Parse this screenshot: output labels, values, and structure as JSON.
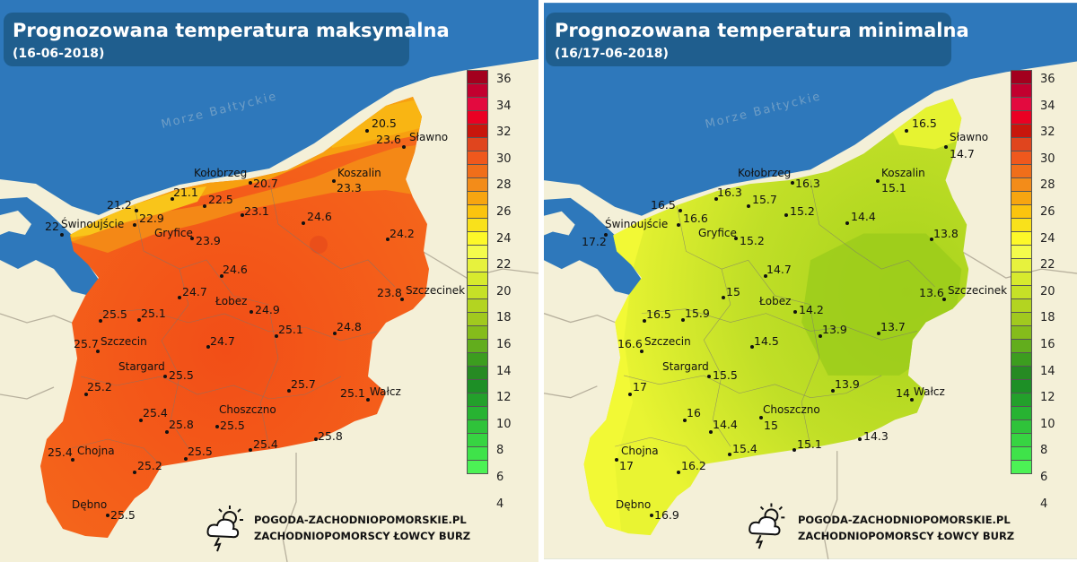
{
  "colors": {
    "sea": "#2e78bb",
    "land_outside": "#f4f0d8",
    "max_base": "#f35a19",
    "min_base": "#cfe52a"
  },
  "sea_label": "Morze Bałtyckie",
  "watermark": {
    "line1": "POGODA-ZACHODNIOPOMORSKIE.PL",
    "line2": "ZACHODNIOPOMORSCY ŁOWCY BURZ",
    "icon": "storm-cloud-sun-icon"
  },
  "legend": {
    "ticks": [
      "36",
      "34",
      "32",
      "30",
      "28",
      "26",
      "24",
      "22",
      "20",
      "18",
      "16",
      "14",
      "12",
      "10",
      "8",
      "6",
      "4"
    ],
    "colors": [
      "#a3001e",
      "#c2002f",
      "#e30a3f",
      "#ea0023",
      "#c8160c",
      "#e0451e",
      "#ef581d",
      "#f06e1a",
      "#f38c19",
      "#f7a510",
      "#fbc40e",
      "#f9e11b",
      "#fdf829",
      "#f4fb4c",
      "#e7f23d",
      "#d7ea2e",
      "#c6e127",
      "#b3d421",
      "#a1c91f",
      "#85bc1b",
      "#62ad1d",
      "#3c9d1f",
      "#268a23",
      "#1d8f26",
      "#23a02b",
      "#27b332",
      "#2fc33a",
      "#37d442",
      "#3fe34a",
      "#4cf255"
    ]
  },
  "cities": [
    {
      "name": "Sławno"
    },
    {
      "name": "Kołobrzeg"
    },
    {
      "name": "Koszalin"
    },
    {
      "name": "Świnoujście"
    },
    {
      "name": "Gryfice"
    },
    {
      "name": "Łobez"
    },
    {
      "name": "Szczecinek"
    },
    {
      "name": "Szczecin"
    },
    {
      "name": "Stargard"
    },
    {
      "name": "Wałcz"
    },
    {
      "name": "Choszczno"
    },
    {
      "name": "Chojna"
    },
    {
      "name": "Dębno"
    }
  ],
  "max_map": {
    "title": "Prognozowana temperatura maksymalna",
    "date": "(16-06-2018)",
    "values": [
      "20.5",
      "23.6",
      "20.7",
      "23.3",
      "21.2",
      "21.1",
      "22.5",
      "23.1",
      "24.6",
      "22",
      "22.9",
      "23.9",
      "24.2",
      "24.6",
      "24.7",
      "23.8",
      "25.5",
      "25.1",
      "24.9",
      "25.1",
      "24.8",
      "25.7",
      "24.7",
      "25.5",
      "25.2",
      "25.7",
      "25.1",
      "25.4",
      "25.8",
      "25.5",
      "25.4",
      "25.5",
      "25.8",
      "25.4",
      "25.2",
      "25.5"
    ]
  },
  "min_map": {
    "title": "Prognozowana temperatura minimalna",
    "date": "(16/17-06-2018)",
    "values": [
      "16.5",
      "14.7",
      "16.3",
      "15.1",
      "16.5",
      "16.3",
      "15.7",
      "15.2",
      "14.4",
      "17.2",
      "16.6",
      "15.2",
      "13.8",
      "14.7",
      "15",
      "13.6",
      "16.5",
      "15.9",
      "14.2",
      "13.9",
      "13.7",
      "16.6",
      "14.5",
      "15.5",
      "17",
      "13.9",
      "14",
      "16",
      "14.4",
      "15",
      "15.4",
      "15.1",
      "14.3",
      "17",
      "16.2",
      "16.9"
    ]
  }
}
